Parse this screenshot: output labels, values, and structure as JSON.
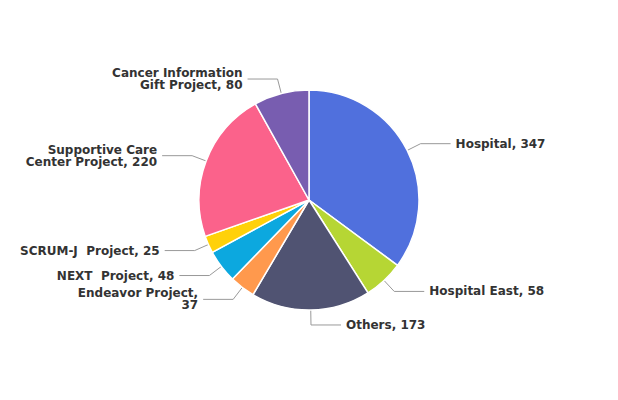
{
  "chart_data": {
    "type": "pie",
    "categories": [
      "Hospital, 347",
      "Hospital East, 58",
      "Others, 173",
      "Endeavor Project,\n37",
      "NEXT  Project, 48",
      "SCRUM-J  Project, 25",
      "Supportive Care\nCenter Project, 220",
      "Cancer Information\nGift Project, 80"
    ],
    "values": [
      347,
      58,
      173,
      37,
      48,
      25,
      220,
      80
    ]
  }
}
